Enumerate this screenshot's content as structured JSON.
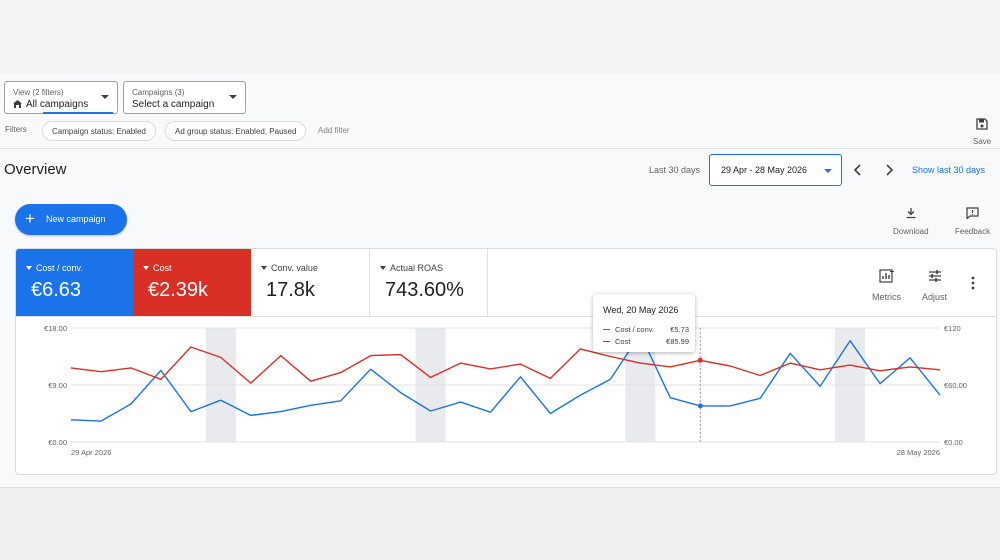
{
  "view_selector": {
    "caption": "View (2 filters)",
    "value": "All campaigns"
  },
  "campaign_selector": {
    "caption": "Campaigns (3)",
    "value": "Select a campaign"
  },
  "filters": {
    "label": "Filters",
    "chips": [
      "Campaign status: Enabled",
      "Ad group status: Enabled, Paused"
    ],
    "add_label": "Add filter"
  },
  "save_label": "Save",
  "overview": {
    "title": "Overview",
    "range_label": "Last 30 days",
    "date_range": "29 Apr - 28 May 2026",
    "show_last": "Show last 30 days",
    "new_campaign_label": "New campaign",
    "download_label": "Download",
    "feedback_label": "Feedback"
  },
  "metrics": [
    {
      "label": "Cost / conv.",
      "value": "€6.63",
      "color": "#1a73e8"
    },
    {
      "label": "Cost",
      "value": "€2.39k",
      "color": "#d93025"
    },
    {
      "label": "Conv. value",
      "value": "17.8k"
    },
    {
      "label": "Actual ROAS",
      "value": "743.60%"
    }
  ],
  "card_tools": {
    "metrics_label": "Metrics",
    "adjust_label": "Adjust"
  },
  "tooltip": {
    "date": "Wed, 20 May 2026",
    "rows": [
      {
        "label": "Cost / conv.",
        "value": "€5.73",
        "color": "#1a73e8"
      },
      {
        "label": "Cost",
        "value": "€85.99",
        "color": "#d93025"
      }
    ]
  },
  "chart_data": {
    "type": "line",
    "x_start_label": "29 Apr 2026",
    "x_end_label": "28 May 2026",
    "left_axis": {
      "ticks": [
        "€18.00",
        "€9.00",
        "€0.00"
      ],
      "range": [
        0,
        18
      ]
    },
    "right_axis": {
      "ticks": [
        "€120",
        "€60.00",
        "€0.00"
      ],
      "range": [
        0,
        120
      ]
    },
    "weekend_bands": [
      [
        5,
        6
      ],
      [
        12,
        13
      ],
      [
        19,
        20
      ],
      [
        26,
        27
      ]
    ],
    "highlight_index": 21,
    "series": [
      {
        "name": "Cost / conv.",
        "axis": "left",
        "color": "#1a73e8",
        "values": [
          3.5,
          3.3,
          6.0,
          11.3,
          4.8,
          6.6,
          4.2,
          4.8,
          5.8,
          6.5,
          11.5,
          7.8,
          4.9,
          6.3,
          4.7,
          10.3,
          4.5,
          7.4,
          9.9,
          17.0,
          7.0,
          5.7,
          5.7,
          6.9,
          14.0,
          8.8,
          16.0,
          9.2,
          13.3,
          7.4
        ]
      },
      {
        "name": "Cost",
        "axis": "right",
        "color": "#d93025",
        "values": [
          78,
          74,
          78,
          66,
          100,
          89,
          62,
          91,
          64,
          73,
          91,
          92,
          68,
          83,
          77,
          82,
          67,
          98,
          90,
          83,
          79,
          86,
          80,
          70,
          83,
          76,
          81,
          75,
          79,
          76
        ]
      }
    ]
  }
}
